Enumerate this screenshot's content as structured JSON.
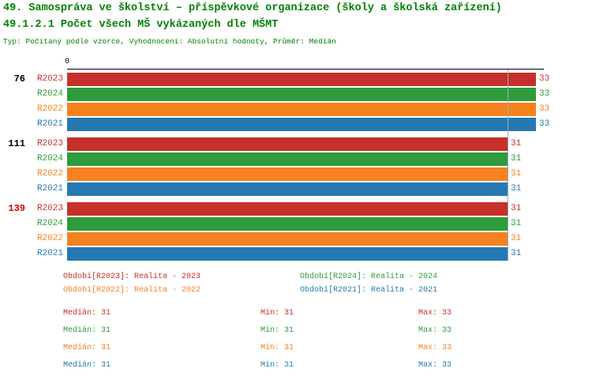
{
  "header": {
    "title": "49. Samospráva ve školství – příspěvkové organizace (školy a školská zařízení)",
    "subtitle": "49.1.2.1 Počet všech MŠ vykázaných dle MŠMT",
    "meta": "Typ: Počítaný podle vzorce, Vyhodnocení: Absolutní hodnoty, Průměr: Medián"
  },
  "colors": {
    "heading_green": "#008000",
    "axis_black": "#000000",
    "group_label_default": "#000000",
    "group_label_highlight": "#cc0000",
    "reference_line": "#8fb0cc"
  },
  "chart_data": {
    "type": "bar",
    "orientation": "horizontal",
    "grid": false,
    "x_axis": {
      "origin_label": "0",
      "min": 0,
      "max": 33.6
    },
    "reference_line": {
      "value": 31
    },
    "series_order": [
      "R2023",
      "R2024",
      "R2022",
      "R2021"
    ],
    "series_colors": {
      "R2023": "#c5302a",
      "R2024": "#2e9b3c",
      "R2022": "#f5821f",
      "R2021": "#2678b2"
    },
    "groups": [
      {
        "label": "76",
        "label_color": "#000000",
        "values": {
          "R2023": 33,
          "R2024": 33,
          "R2022": 33,
          "R2021": 33
        }
      },
      {
        "label": "111",
        "label_color": "#000000",
        "values": {
          "R2023": 31,
          "R2024": 31,
          "R2022": 31,
          "R2021": 31
        }
      },
      {
        "label": "139",
        "label_color": "#cc0000",
        "values": {
          "R2023": 31,
          "R2024": 31,
          "R2022": 31,
          "R2021": 31
        }
      }
    ],
    "stats": [
      {
        "series": "R2023",
        "median": 31,
        "min": 31,
        "max": 33
      },
      {
        "series": "R2024",
        "median": 31,
        "min": 31,
        "max": 33
      },
      {
        "series": "R2022",
        "median": 31,
        "min": 31,
        "max": 33
      },
      {
        "series": "R2021",
        "median": 31,
        "min": 31,
        "max": 33
      }
    ]
  },
  "legend": [
    {
      "series": "R2023",
      "label": "Období[R2023]: Realita - 2023"
    },
    {
      "series": "R2024",
      "label": "Období[R2024]: Realita - 2024"
    },
    {
      "series": "R2022",
      "label": "Období[R2022]: Realita - 2022"
    },
    {
      "series": "R2021",
      "label": "Období[R2021]: Realita - 2021"
    }
  ],
  "stats_table": {
    "rows": [
      {
        "series": "R2023",
        "cells": [
          "Medián: 31",
          "Min: 31",
          "Max: 33"
        ]
      },
      {
        "series": "R2024",
        "cells": [
          "Medián: 31",
          "Min: 31",
          "Max: 33"
        ]
      },
      {
        "series": "R2022",
        "cells": [
          "Medián: 31",
          "Min: 31",
          "Max: 33"
        ]
      },
      {
        "series": "R2021",
        "cells": [
          "Medián: 31",
          "Min: 31",
          "Max: 33"
        ]
      }
    ]
  }
}
